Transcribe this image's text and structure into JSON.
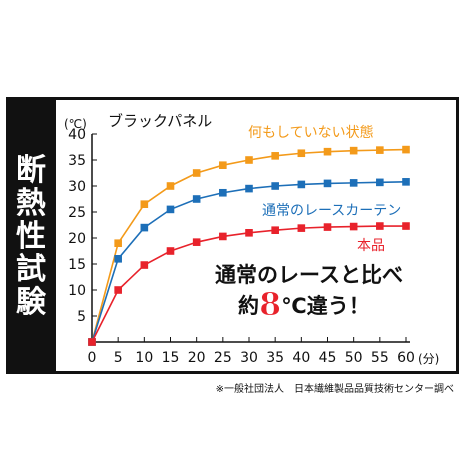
{
  "side_title": "断熱性試験",
  "footnote": "※一般社団法人　日本繊維製品品質技術センター調べ",
  "callout": {
    "line1": "通常のレースと比べ",
    "prefix": "約",
    "number": "8",
    "suffix": "℃違う！"
  },
  "colors": {
    "background": "#ffffff",
    "frame": "#111111",
    "blackpanel": "#f39a1a",
    "lace": "#1d6fb8",
    "product": "#e8222b",
    "callout_number": "#e8222b"
  },
  "chart_data": {
    "type": "line",
    "title": "ブラックパネル",
    "ylabel": "(℃)",
    "xlabel": "(分)",
    "xlim": [
      0,
      60
    ],
    "ylim": [
      0,
      40
    ],
    "x_ticks": [
      0,
      5,
      10,
      15,
      20,
      25,
      30,
      35,
      40,
      45,
      50,
      55,
      60
    ],
    "y_ticks": [
      5,
      10,
      15,
      20,
      25,
      30,
      35,
      40
    ],
    "grid": false,
    "x": [
      0,
      5,
      10,
      15,
      20,
      25,
      30,
      35,
      40,
      45,
      50,
      55,
      60
    ],
    "series": [
      {
        "name": "何もしていない状態",
        "color": "#f39a1a",
        "values": [
          0,
          19,
          26.5,
          30,
          32.5,
          34,
          35,
          35.8,
          36.3,
          36.6,
          36.8,
          36.9,
          37
        ]
      },
      {
        "name": "通常のレースカーテン",
        "color": "#1d6fb8",
        "values": [
          0,
          16,
          22,
          25.5,
          27.5,
          28.7,
          29.5,
          30,
          30.3,
          30.5,
          30.6,
          30.7,
          30.8
        ]
      },
      {
        "name": "本品",
        "color": "#e8222b",
        "values": [
          0,
          10,
          14.8,
          17.5,
          19.2,
          20.3,
          21,
          21.5,
          21.9,
          22.1,
          22.2,
          22.3,
          22.3
        ]
      }
    ]
  }
}
